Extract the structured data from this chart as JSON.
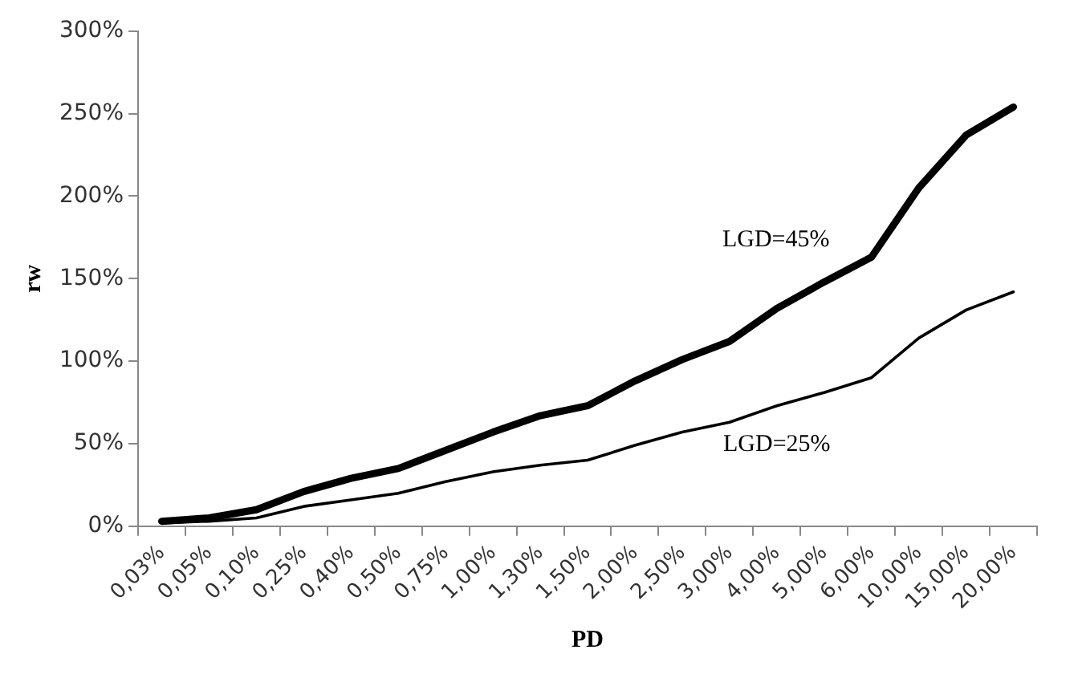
{
  "chart_data": {
    "type": "line",
    "xlabel": "PD",
    "ylabel": "rw",
    "categories": [
      "0,03%",
      "0,05%",
      "0,10%",
      "0,25%",
      "0,40%",
      "0,50%",
      "0,75%",
      "1,00%",
      "1,30%",
      "1,50%",
      "2,00%",
      "2,50%",
      "3,00%",
      "4,00%",
      "5,00%",
      "6,00%",
      "10,00%",
      "15,00%",
      "20,00%"
    ],
    "series": [
      {
        "name": "LGD=45%",
        "color": "#000000",
        "values": [
          3,
          5,
          10,
          21,
          29,
          35,
          46,
          57,
          67,
          73,
          88,
          101,
          112,
          132,
          148,
          163,
          205,
          237,
          254
        ]
      },
      {
        "name": "LGD=25%",
        "color": "#000000",
        "values": [
          2,
          3,
          5,
          12,
          16,
          20,
          27,
          33,
          37,
          40,
          49,
          57,
          63,
          73,
          81,
          90,
          114,
          131,
          142
        ]
      }
    ],
    "ylim": [
      0,
      300
    ],
    "yticks": [
      {
        "value": 0,
        "label": "0%"
      },
      {
        "value": 50,
        "label": "50%"
      },
      {
        "value": 100,
        "label": "100%"
      },
      {
        "value": 150,
        "label": "150%"
      },
      {
        "value": 200,
        "label": "200%"
      },
      {
        "value": 250,
        "label": "250%"
      },
      {
        "value": 300,
        "label": "300%"
      }
    ],
    "grid": false,
    "legend": false,
    "marker": "none",
    "line_style": "solid"
  }
}
